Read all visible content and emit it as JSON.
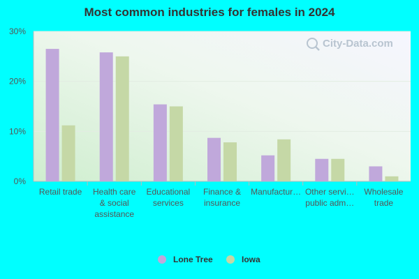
{
  "chart_data": {
    "type": "bar",
    "title": "Most common industries for females in 2024",
    "xlabel": "",
    "ylabel": "",
    "ylim": [
      0,
      30
    ],
    "yticks": [
      "0%",
      "10%",
      "20%",
      "30%"
    ],
    "grid": true,
    "legend_position": "bottom",
    "categories": [
      [
        "Retail trade"
      ],
      [
        "Health care",
        "& social",
        "assistance"
      ],
      [
        "Educational",
        "services"
      ],
      [
        "Finance &",
        "insurance"
      ],
      [
        "Manufactur…"
      ],
      [
        "Other servi…",
        "public adm…"
      ],
      [
        "Wholesale",
        "trade"
      ]
    ],
    "series": [
      {
        "name": "Lone Tree",
        "color": "#c0a8db",
        "values": [
          26.5,
          25.8,
          15.4,
          8.7,
          5.2,
          4.5,
          3.0
        ]
      },
      {
        "name": "Iowa",
        "color": "#c5d8a6",
        "values": [
          11.2,
          25.0,
          15.0,
          7.8,
          8.4,
          4.5,
          1.0
        ]
      }
    ]
  },
  "watermark": {
    "text": "City-Data.com",
    "icon": "search-icon"
  }
}
